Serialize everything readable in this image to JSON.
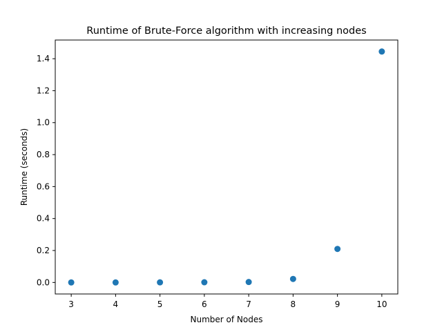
{
  "chart_data": {
    "type": "scatter",
    "title": "Runtime of Brute-Force algorithm with increasing nodes",
    "xlabel": "Number of Nodes",
    "ylabel": "Runtime (seconds)",
    "x": [
      3,
      4,
      5,
      6,
      7,
      8,
      9,
      10
    ],
    "y": [
      0.0001,
      0.0003,
      0.0008,
      0.0012,
      0.003,
      0.022,
      0.21,
      1.445
    ],
    "xlim": [
      2.64,
      10.36
    ],
    "ylim": [
      -0.072,
      1.517
    ],
    "xticks": [
      3,
      4,
      5,
      6,
      7,
      8,
      9,
      10
    ],
    "xtick_labels": [
      "3",
      "4",
      "5",
      "6",
      "7",
      "8",
      "9",
      "10"
    ],
    "yticks": [
      0.0,
      0.2,
      0.4,
      0.6,
      0.8,
      1.0,
      1.2,
      1.4
    ],
    "ytick_labels": [
      "0.0",
      "0.2",
      "0.4",
      "0.6",
      "0.8",
      "1.0",
      "1.2",
      "1.4"
    ],
    "marker_color": "#1f77b4",
    "grid": false,
    "legend": "none"
  }
}
